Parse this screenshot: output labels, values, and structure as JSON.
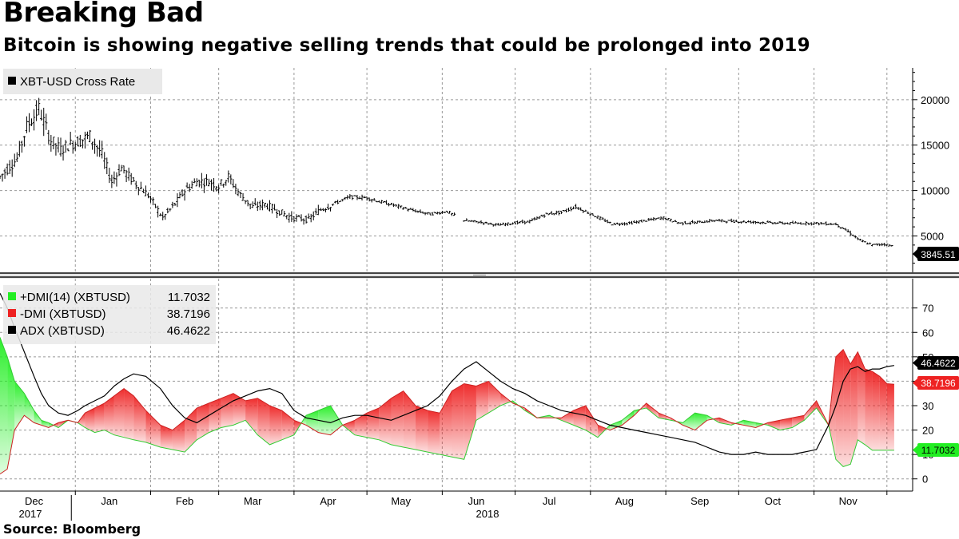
{
  "header": {
    "title": "Breaking Bad",
    "subtitle": "Bitcoin is showing negative selling trends that could be prolonged into 2019"
  },
  "footer": {
    "source": "Source: Bloomberg"
  },
  "colors": {
    "green": "#22ee22",
    "red": "#ee2222",
    "black": "#000000",
    "grid": "#999999"
  },
  "chart_data": [
    {
      "type": "ohlc",
      "legend": [
        {
          "label": "XBT-USD Cross Rate",
          "color": "#000000"
        }
      ],
      "last_value_label": "3845.51",
      "ylim": [
        1000,
        23500
      ],
      "yticks": [
        5000,
        10000,
        15000,
        20000
      ],
      "x_months": [
        "Dec",
        "Jan",
        "Feb",
        "Mar",
        "Apr",
        "May",
        "Jun",
        "Jul",
        "Aug",
        "Sep",
        "Oct",
        "Nov"
      ],
      "x_years": [
        "2017",
        "2018"
      ],
      "grid": true,
      "x": [
        "2017-12-01",
        "2017-12-08",
        "2017-12-12",
        "2017-12-17",
        "2017-12-22",
        "2017-12-26",
        "2017-12-29",
        "2018-01-03",
        "2018-01-07",
        "2018-01-12",
        "2018-01-16",
        "2018-01-20",
        "2018-01-25",
        "2018-01-31",
        "2018-02-06",
        "2018-02-11",
        "2018-02-15",
        "2018-02-20",
        "2018-02-25",
        "2018-03-01",
        "2018-03-05",
        "2018-03-10",
        "2018-03-15",
        "2018-03-20",
        "2018-03-25",
        "2018-03-31",
        "2018-04-07",
        "2018-04-12",
        "2018-04-17",
        "2018-04-24",
        "2018-05-01",
        "2018-05-06",
        "2018-05-12",
        "2018-05-20",
        "2018-05-27",
        "2018-06-03",
        "2018-06-10",
        "2018-06-17",
        "2018-06-24",
        "2018-06-30",
        "2018-07-07",
        "2018-07-14",
        "2018-07-20",
        "2018-07-26",
        "2018-08-03",
        "2018-08-10",
        "2018-08-17",
        "2018-08-24",
        "2018-08-31",
        "2018-09-07",
        "2018-09-14",
        "2018-09-21",
        "2018-09-30",
        "2018-10-10",
        "2018-10-20",
        "2018-11-01",
        "2018-11-10",
        "2018-11-15",
        "2018-11-20",
        "2018-11-25",
        "2018-11-30",
        "2018-12-04"
      ],
      "close": [
        11500,
        13500,
        17000,
        19000,
        15500,
        14500,
        15000,
        15500,
        16000,
        14000,
        11000,
        12500,
        11000,
        9500,
        7000,
        8500,
        10000,
        11000,
        11000,
        10500,
        11500,
        9500,
        8200,
        8500,
        7800,
        7000,
        6800,
        7900,
        8500,
        9300,
        9200,
        8800,
        8400,
        7800,
        7400,
        7700,
        6700,
        6500,
        6200,
        6400,
        6600,
        7400,
        7600,
        8200,
        7200,
        6300,
        6400,
        6700,
        7000,
        6400,
        6500,
        6700,
        6600,
        6500,
        6400,
        6400,
        6300,
        5500,
        4500,
        4000,
        4100,
        3850
      ]
    },
    {
      "type": "area-line",
      "legend": [
        {
          "label": "+DMI(14) (XBTUSD)",
          "value": "11.7032",
          "color": "#22ee22"
        },
        {
          "label": "-DMI (XBTUSD)",
          "value": "38.7196",
          "color": "#ee2222"
        },
        {
          "label": "ADX (XBTUSD)",
          "value": "46.4622",
          "color": "#000000"
        }
      ],
      "ylim": [
        -5,
        82
      ],
      "yticks": [
        0,
        10,
        20,
        30,
        40,
        50,
        60,
        70
      ],
      "grid": true,
      "x": [
        "2017-12-01",
        "2017-12-04",
        "2017-12-07",
        "2017-12-11",
        "2017-12-15",
        "2017-12-18",
        "2017-12-21",
        "2017-12-25",
        "2017-12-29",
        "2018-01-02",
        "2018-01-05",
        "2018-01-09",
        "2018-01-13",
        "2018-01-17",
        "2018-01-21",
        "2018-01-25",
        "2018-01-30",
        "2018-02-05",
        "2018-02-10",
        "2018-02-15",
        "2018-02-20",
        "2018-02-25",
        "2018-03-02",
        "2018-03-07",
        "2018-03-12",
        "2018-03-17",
        "2018-03-22",
        "2018-03-27",
        "2018-04-01",
        "2018-04-06",
        "2018-04-11",
        "2018-04-16",
        "2018-04-21",
        "2018-04-26",
        "2018-05-01",
        "2018-05-06",
        "2018-05-11",
        "2018-05-16",
        "2018-05-21",
        "2018-05-26",
        "2018-05-31",
        "2018-06-05",
        "2018-06-10",
        "2018-06-15",
        "2018-06-20",
        "2018-06-25",
        "2018-06-30",
        "2018-07-05",
        "2018-07-10",
        "2018-07-15",
        "2018-07-20",
        "2018-07-25",
        "2018-07-30",
        "2018-08-04",
        "2018-08-09",
        "2018-08-14",
        "2018-08-19",
        "2018-08-24",
        "2018-08-29",
        "2018-09-03",
        "2018-09-08",
        "2018-09-13",
        "2018-09-18",
        "2018-09-23",
        "2018-09-28",
        "2018-10-03",
        "2018-10-08",
        "2018-10-13",
        "2018-10-18",
        "2018-10-23",
        "2018-10-28",
        "2018-11-02",
        "2018-11-07",
        "2018-11-10",
        "2018-11-13",
        "2018-11-16",
        "2018-11-19",
        "2018-11-22",
        "2018-11-25",
        "2018-11-28",
        "2018-12-01",
        "2018-12-04"
      ],
      "series": [
        {
          "name": "+DMI(14) (XBTUSD)",
          "values": [
            58,
            50,
            40,
            35,
            28,
            24,
            23,
            21,
            24,
            23,
            21,
            19,
            20,
            18,
            17,
            16,
            15,
            13,
            12,
            11,
            16,
            19,
            21,
            22,
            24,
            18,
            14,
            16,
            18,
            26,
            28,
            30,
            22,
            18,
            17,
            16,
            14,
            13,
            12,
            11,
            10,
            9,
            8,
            24,
            27,
            30,
            32,
            28,
            25,
            26,
            24,
            22,
            20,
            17,
            22,
            24,
            28,
            29,
            25,
            24,
            23,
            27,
            26,
            23,
            22,
            24,
            23,
            22,
            20,
            21,
            24,
            29,
            22,
            8,
            5,
            6,
            16,
            14,
            11.7,
            11.7,
            11.7,
            11.7
          ]
        },
        {
          "name": "-DMI (XBTUSD)",
          "values": [
            2,
            4,
            20,
            26,
            23,
            22,
            21,
            23,
            24,
            23,
            27,
            29,
            31,
            34,
            37,
            34,
            28,
            22,
            20,
            24,
            29,
            31,
            33,
            35,
            32,
            33,
            30,
            28,
            24,
            22,
            19,
            18,
            22,
            24,
            27,
            29,
            33,
            36,
            30,
            28,
            27,
            36,
            39,
            38,
            40,
            35,
            31,
            29,
            25,
            25,
            25,
            28,
            30,
            22,
            20,
            22,
            26,
            31,
            27,
            25,
            22,
            20,
            24,
            25,
            23,
            22,
            21,
            23,
            24,
            25,
            26,
            32,
            22,
            50,
            53,
            47,
            52,
            45,
            44,
            42,
            39,
            38.72
          ]
        },
        {
          "name": "ADX (XBTUSD)",
          "values": [
            76,
            70,
            62,
            52,
            42,
            35,
            30,
            27,
            26,
            28,
            30,
            32,
            34,
            38,
            41,
            43,
            42,
            37,
            30,
            25,
            23,
            26,
            29,
            32,
            34,
            36,
            37,
            35,
            28,
            25,
            24,
            23,
            25,
            26,
            26,
            25,
            24,
            26,
            28,
            30,
            34,
            40,
            45,
            48,
            44,
            40,
            37,
            35,
            32,
            30,
            28,
            27,
            26,
            24,
            22,
            21,
            20,
            19,
            18,
            17,
            16,
            15,
            13,
            11,
            10,
            10,
            11,
            10,
            10,
            10,
            11,
            12,
            22,
            30,
            40,
            45,
            46,
            44,
            45,
            45,
            46,
            46.46
          ]
        }
      ]
    }
  ]
}
